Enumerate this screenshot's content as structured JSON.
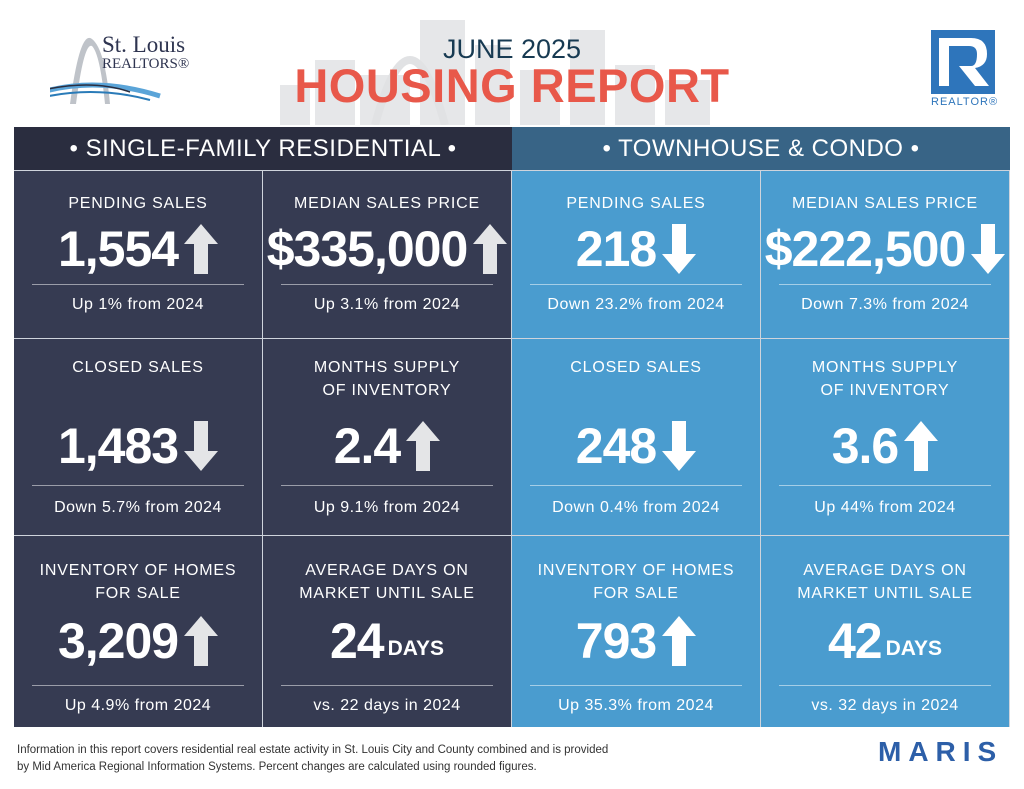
{
  "header": {
    "org_logo_text": [
      "St. Louis",
      "REALTORS®"
    ],
    "month": "JUNE 2025",
    "title": "HOUSING REPORT",
    "realtor_logo_text": "REALTOR®"
  },
  "colors": {
    "single_family_header": "#2a2d3f",
    "single_family_cell": "#363b52",
    "townhouse_header": "#386486",
    "townhouse_cell": "#4a9ccf",
    "title_red": "#e8584a",
    "month_navy": "#173a52"
  },
  "sections": [
    {
      "heading": "• SINGLE-FAMILY RESIDENTIAL •",
      "cells": [
        {
          "label": [
            "PENDING SALES"
          ],
          "value": "1,554",
          "unit": "",
          "direction": "up",
          "change": "Up 1% from 2024"
        },
        {
          "label": [
            "MEDIAN SALES PRICE"
          ],
          "value": "$335,000",
          "unit": "",
          "direction": "up",
          "change": "Up 3.1% from 2024"
        },
        {
          "label": [
            "CLOSED SALES"
          ],
          "value": "1,483",
          "unit": "",
          "direction": "down",
          "change": "Down 5.7% from 2024"
        },
        {
          "label": [
            "MONTHS SUPPLY",
            "OF INVENTORY"
          ],
          "value": "2.4",
          "unit": "",
          "direction": "up",
          "change": "Up 9.1% from 2024"
        },
        {
          "label": [
            "INVENTORY OF HOMES",
            "FOR SALE"
          ],
          "value": "3,209",
          "unit": "",
          "direction": "up",
          "change": "Up 4.9% from 2024"
        },
        {
          "label": [
            "AVERAGE DAYS ON",
            "MARKET UNTIL SALE"
          ],
          "value": "24",
          "unit": "DAYS",
          "direction": "none",
          "change": "vs. 22 days in 2024"
        }
      ]
    },
    {
      "heading": "• TOWNHOUSE & CONDO •",
      "cells": [
        {
          "label": [
            "PENDING SALES"
          ],
          "value": "218",
          "unit": "",
          "direction": "down",
          "change": "Down 23.2% from 2024"
        },
        {
          "label": [
            "MEDIAN SALES PRICE"
          ],
          "value": "$222,500",
          "unit": "",
          "direction": "down",
          "change": "Down 7.3% from 2024"
        },
        {
          "label": [
            "CLOSED SALES"
          ],
          "value": "248",
          "unit": "",
          "direction": "down",
          "change": "Down 0.4% from 2024"
        },
        {
          "label": [
            "MONTHS SUPPLY",
            "OF INVENTORY"
          ],
          "value": "3.6",
          "unit": "",
          "direction": "up",
          "change": "Up 44% from 2024"
        },
        {
          "label": [
            "INVENTORY OF HOMES",
            "FOR SALE"
          ],
          "value": "793",
          "unit": "",
          "direction": "up",
          "change": "Up 35.3% from 2024"
        },
        {
          "label": [
            "AVERAGE DAYS ON",
            "MARKET UNTIL SALE"
          ],
          "value": "42",
          "unit": "DAYS",
          "direction": "none",
          "change": "vs. 32 days in 2024"
        }
      ]
    }
  ],
  "footer": {
    "disclaimer": [
      "Information in this report covers residential real estate activity in St. Louis City and County combined and is provided",
      "by Mid America Regional Information Systems. Percent changes are calculated using rounded figures."
    ],
    "brand": "MARIS"
  }
}
